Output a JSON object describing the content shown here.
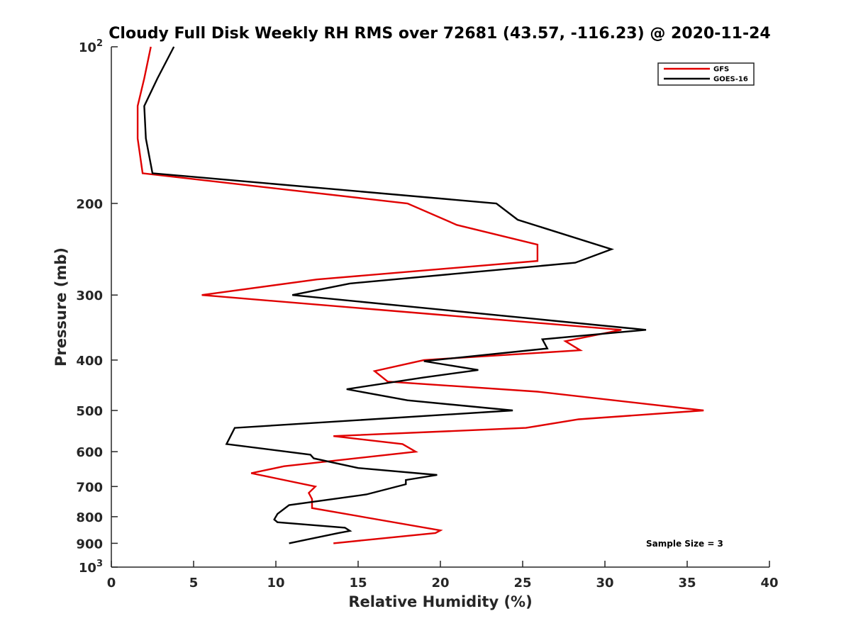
{
  "chart_data": {
    "type": "line",
    "title": "Cloudy Full Disk Weekly RH RMS over 72681 (43.57, -116.23) @ 2020-11-24",
    "xlabel": "Relative Humidity (%)",
    "ylabel": "Pressure (mb)",
    "xlim": [
      0,
      40
    ],
    "ylim": [
      100,
      1000
    ],
    "y_scale": "log",
    "y_reversed": true,
    "grid": false,
    "legend_position": "top-right",
    "x_ticks": [
      0,
      5,
      10,
      15,
      20,
      25,
      30,
      35,
      40
    ],
    "x_tick_labels": [
      "0",
      "5",
      "10",
      "15",
      "20",
      "25",
      "30",
      "35",
      "40"
    ],
    "y_ticks": [
      100,
      200,
      300,
      400,
      500,
      600,
      700,
      800,
      900,
      1000
    ],
    "y_tick_labels": [
      {
        "base": "10",
        "exp": "2"
      },
      {
        "base": "200",
        "exp": ""
      },
      {
        "base": "300",
        "exp": ""
      },
      {
        "base": "400",
        "exp": ""
      },
      {
        "base": "500",
        "exp": ""
      },
      {
        "base": "600",
        "exp": ""
      },
      {
        "base": "700",
        "exp": ""
      },
      {
        "base": "800",
        "exp": ""
      },
      {
        "base": "900",
        "exp": ""
      },
      {
        "base": "10",
        "exp": "3"
      }
    ],
    "annotation": "Sample Size = 3",
    "series": [
      {
        "name": "GFS",
        "color": "#e00000",
        "points": [
          [
            2.4,
            100
          ],
          [
            2.0,
            115
          ],
          [
            1.6,
            130
          ],
          [
            1.6,
            150
          ],
          [
            1.9,
            175
          ],
          [
            18.0,
            200
          ],
          [
            21.0,
            220
          ],
          [
            25.9,
            240
          ],
          [
            25.9,
            258
          ],
          [
            12.5,
            280
          ],
          [
            5.5,
            300
          ],
          [
            31.0,
            350
          ],
          [
            27.6,
            368
          ],
          [
            28.5,
            383
          ],
          [
            19.0,
            400
          ],
          [
            16.0,
            420
          ],
          [
            16.8,
            440
          ],
          [
            25.9,
            460
          ],
          [
            36.0,
            500
          ],
          [
            28.4,
            520
          ],
          [
            25.2,
            540
          ],
          [
            13.5,
            560
          ],
          [
            17.7,
            580
          ],
          [
            18.5,
            600
          ],
          [
            10.5,
            640
          ],
          [
            8.5,
            660
          ],
          [
            12.4,
            700
          ],
          [
            12.0,
            720
          ],
          [
            12.2,
            740
          ],
          [
            12.2,
            770
          ],
          [
            20.0,
            850
          ],
          [
            19.7,
            860
          ],
          [
            13.5,
            900
          ]
        ]
      },
      {
        "name": "GOES-16",
        "color": "#000000",
        "points": [
          [
            3.8,
            100
          ],
          [
            2.8,
            115
          ],
          [
            2.0,
            130
          ],
          [
            2.1,
            150
          ],
          [
            2.5,
            175
          ],
          [
            23.4,
            200
          ],
          [
            24.7,
            215
          ],
          [
            30.4,
            245
          ],
          [
            28.2,
            260
          ],
          [
            14.5,
            285
          ],
          [
            11.0,
            300
          ],
          [
            32.5,
            350
          ],
          [
            26.2,
            365
          ],
          [
            26.5,
            380
          ],
          [
            19.0,
            402
          ],
          [
            22.3,
            418
          ],
          [
            19.0,
            432
          ],
          [
            14.3,
            455
          ],
          [
            18.0,
            478
          ],
          [
            24.4,
            500
          ],
          [
            7.5,
            540
          ],
          [
            7.0,
            580
          ],
          [
            12.1,
            608
          ],
          [
            12.3,
            618
          ],
          [
            15.0,
            645
          ],
          [
            19.8,
            665
          ],
          [
            17.9,
            680
          ],
          [
            17.9,
            693
          ],
          [
            15.5,
            725
          ],
          [
            10.8,
            760
          ],
          [
            10.1,
            790
          ],
          [
            9.9,
            810
          ],
          [
            10.1,
            820
          ],
          [
            14.2,
            840
          ],
          [
            14.5,
            852
          ],
          [
            13.8,
            860
          ],
          [
            10.8,
            900
          ]
        ]
      }
    ]
  }
}
